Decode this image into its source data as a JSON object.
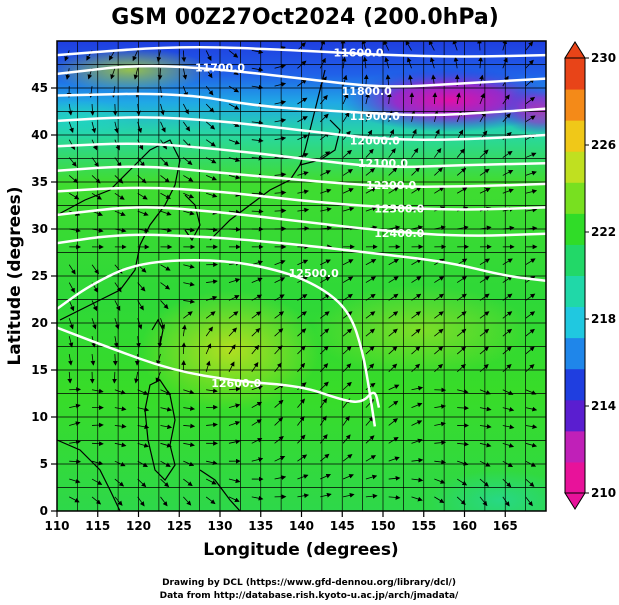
{
  "chart_data": {
    "type": "heatmap",
    "title": "GSM 00Z27Oct2024 (200.0hPa)",
    "xlabel": "Longitude (degrees)",
    "ylabel": "Latitude  (degrees)",
    "xlim": [
      110,
      170
    ],
    "ylim": [
      0,
      50
    ],
    "grid": true,
    "x_ticks": [
      110,
      115,
      120,
      125,
      130,
      135,
      140,
      145,
      150,
      155,
      160,
      165
    ],
    "y_ticks": [
      0,
      5,
      10,
      15,
      20,
      25,
      30,
      35,
      40,
      45
    ],
    "colorbar": {
      "range": [
        210,
        230
      ],
      "ticks": [
        210,
        214,
        218,
        222,
        226,
        230
      ],
      "colors": [
        "#e8129a",
        "#c020b8",
        "#5a1ed0",
        "#1f3ee0",
        "#1f86ea",
        "#20c8e0",
        "#20d8a8",
        "#22d868",
        "#30dc28",
        "#78e020",
        "#c0e020",
        "#f0c818",
        "#f48a18",
        "#e84418"
      ],
      "placement": "right"
    },
    "contours": [
      {
        "label": "11600.0",
        "points": [
          [
            110,
            48.5
          ],
          [
            125,
            49.5
          ],
          [
            140,
            49
          ],
          [
            150,
            48.5
          ],
          [
            160,
            48.3
          ],
          [
            170,
            48.5
          ]
        ]
      },
      {
        "label": "11700.0",
        "points": [
          [
            110,
            46.5
          ],
          [
            120,
            47.5
          ],
          [
            130,
            47
          ],
          [
            140,
            46
          ],
          [
            150,
            45
          ],
          [
            160,
            45.5
          ],
          [
            170,
            46
          ]
        ]
      },
      {
        "label": "11800.0",
        "points": [
          [
            110,
            44.2
          ],
          [
            125,
            44.5
          ],
          [
            135,
            43
          ],
          [
            145,
            42.5
          ],
          [
            155,
            42
          ],
          [
            165,
            42.5
          ],
          [
            170,
            42.8
          ]
        ]
      },
      {
        "label": "11900.0",
        "points": [
          [
            110,
            41.5
          ],
          [
            120,
            42
          ],
          [
            130,
            41.5
          ],
          [
            140,
            40.5
          ],
          [
            150,
            39.5
          ],
          [
            160,
            39.5
          ],
          [
            170,
            40
          ]
        ]
      },
      {
        "label": "12000.0",
        "points": [
          [
            110,
            38.8
          ],
          [
            120,
            39.2
          ],
          [
            130,
            38.5
          ],
          [
            140,
            37.5
          ],
          [
            150,
            36.5
          ],
          [
            160,
            36.8
          ],
          [
            170,
            37
          ]
        ]
      },
      {
        "label": "12100.0",
        "points": [
          [
            110,
            36.2
          ],
          [
            120,
            36.8
          ],
          [
            130,
            36
          ],
          [
            140,
            35.2
          ],
          [
            150,
            34.5
          ],
          [
            160,
            34.5
          ],
          [
            170,
            34.8
          ]
        ]
      },
      {
        "label": "12200.0",
        "points": [
          [
            110,
            34
          ],
          [
            120,
            34.5
          ],
          [
            130,
            34
          ],
          [
            140,
            33
          ],
          [
            150,
            32.3
          ],
          [
            160,
            32
          ],
          [
            170,
            32.3
          ]
        ]
      },
      {
        "label": "12300.0",
        "points": [
          [
            110,
            31.5
          ],
          [
            120,
            32.5
          ],
          [
            130,
            31.8
          ],
          [
            140,
            30.8
          ],
          [
            150,
            29.8
          ],
          [
            160,
            29.2
          ],
          [
            170,
            29.5
          ]
        ]
      },
      {
        "label": "12400.0",
        "points": [
          [
            110,
            28.5
          ],
          [
            118,
            29.5
          ],
          [
            128,
            29.2
          ],
          [
            138,
            28.5
          ],
          [
            148,
            27.5
          ],
          [
            158,
            26.5
          ],
          [
            165,
            25
          ],
          [
            170,
            24.5
          ]
        ]
      },
      {
        "label": "12500.0",
        "points": [
          [
            110,
            21.5
          ],
          [
            114,
            24
          ],
          [
            120,
            26.5
          ],
          [
            130,
            26.8
          ],
          [
            138,
            25.5
          ],
          [
            143,
            23.5
          ],
          [
            146,
            21
          ],
          [
            147.5,
            17
          ],
          [
            148.3,
            13
          ],
          [
            149,
            9
          ]
        ]
      },
      {
        "label": "12600.0",
        "points": [
          [
            110,
            19.5
          ],
          [
            116,
            17.5
          ],
          [
            124,
            15
          ],
          [
            132,
            13.8
          ],
          [
            140,
            13.3
          ],
          [
            145,
            11.8
          ],
          [
            147.5,
            11.5
          ],
          [
            149,
            13
          ],
          [
            149.5,
            11
          ]
        ]
      }
    ],
    "contour_label_positions": [
      {
        "label": "11600.0",
        "x": 147,
        "y": 48.8
      },
      {
        "label": "11700.0",
        "x": 130,
        "y": 47.2
      },
      {
        "label": "11800.0",
        "x": 148,
        "y": 44.7
      },
      {
        "label": "11900.0",
        "x": 149,
        "y": 42.0
      },
      {
        "label": "12000.0",
        "x": 149,
        "y": 39.4
      },
      {
        "label": "12100.0",
        "x": 150,
        "y": 37.0
      },
      {
        "label": "12200.0",
        "x": 151,
        "y": 34.7
      },
      {
        "label": "12300.0",
        "x": 152,
        "y": 32.2
      },
      {
        "label": "12400.0",
        "x": 152,
        "y": 29.6
      },
      {
        "label": "12500.0",
        "x": 141.5,
        "y": 25.3
      },
      {
        "label": "12600.0",
        "x": 132,
        "y": 13.6
      }
    ],
    "temperature_field": [
      {
        "region": "lon 110-170, lat 0-25",
        "approx_value": 221
      },
      {
        "region": "lon 125-135, lat 18-22",
        "approx_value": 224
      },
      {
        "region": "lon 110-145, lat 25-40",
        "approx_value": 222
      },
      {
        "region": "lon 110-170, lat 40-47",
        "approx_value": 216
      },
      {
        "region": "lon 145-160, lat 42-47",
        "approx_value": 211
      }
    ]
  },
  "credits": {
    "line1": "Drawing by DCL (https://www.gfd-dennou.org/library/dcl/)",
    "line2": "Data from http://database.rish.kyoto-u.ac.jp/arch/jmadata/"
  }
}
